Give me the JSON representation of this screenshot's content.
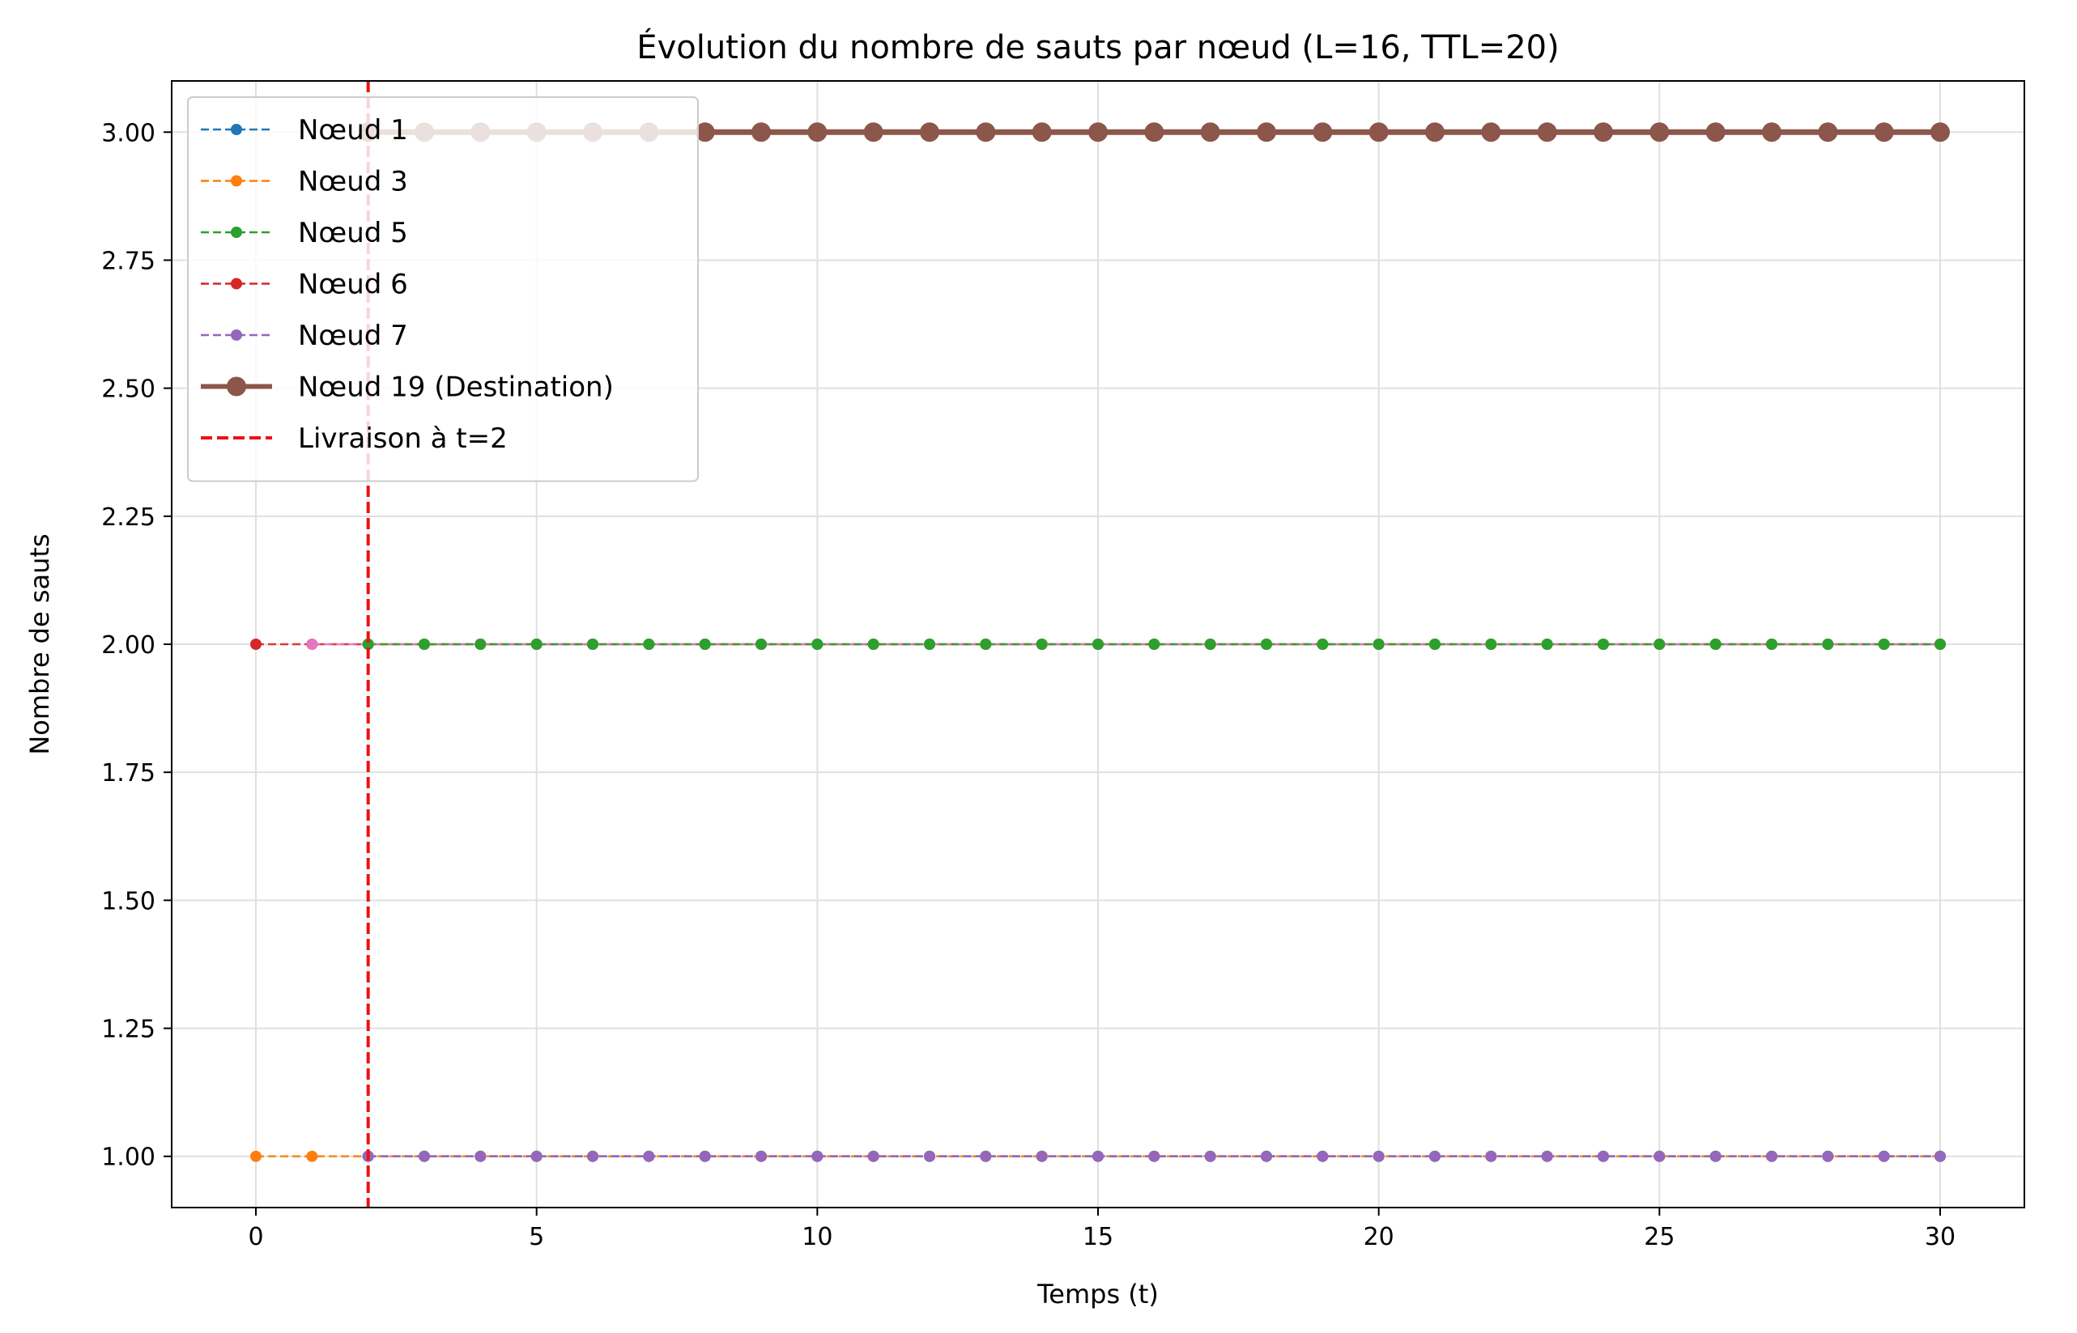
{
  "chart_data": {
    "type": "line",
    "title": "Évolution du nombre de sauts par nœud (L=16, TTL=20)",
    "xlabel": "Temps (t)",
    "ylabel": "Nombre de sauts",
    "xlim": [
      -1.5,
      31.5
    ],
    "ylim": [
      0.9,
      3.1
    ],
    "xticks": [
      0,
      5,
      10,
      15,
      20,
      25,
      30
    ],
    "yticks": [
      1.0,
      1.25,
      1.5,
      1.75,
      2.0,
      2.25,
      2.5,
      2.75,
      3.0
    ],
    "ytick_labels": [
      "1.00",
      "1.25",
      "1.50",
      "1.75",
      "2.00",
      "2.25",
      "2.50",
      "2.75",
      "3.00"
    ],
    "grid": true,
    "legend_position": "top-left",
    "series": [
      {
        "name": "Nœud 1",
        "color": "#1f77b4",
        "style": "dashed",
        "marker": "small",
        "x": [
          2,
          3,
          4,
          5,
          6,
          7,
          8,
          9,
          10,
          11,
          12,
          13,
          14,
          15,
          16,
          17,
          18,
          19,
          20,
          21,
          22,
          23,
          24,
          25,
          26,
          27,
          28,
          29,
          30
        ],
        "y": [
          1,
          1,
          1,
          1,
          1,
          1,
          1,
          1,
          1,
          1,
          1,
          1,
          1,
          1,
          1,
          1,
          1,
          1,
          1,
          1,
          1,
          1,
          1,
          1,
          1,
          1,
          1,
          1,
          1
        ]
      },
      {
        "name": "Nœud 3",
        "color": "#ff7f0e",
        "style": "dashed",
        "marker": "small",
        "x": [
          0,
          1,
          2,
          3,
          4,
          5,
          6,
          7,
          8,
          9,
          10,
          11,
          12,
          13,
          14,
          15,
          16,
          17,
          18,
          19,
          20,
          21,
          22,
          23,
          24,
          25,
          26,
          27,
          28,
          29,
          30
        ],
        "y": [
          1,
          1,
          1,
          1,
          1,
          1,
          1,
          1,
          1,
          1,
          1,
          1,
          1,
          1,
          1,
          1,
          1,
          1,
          1,
          1,
          1,
          1,
          1,
          1,
          1,
          1,
          1,
          1,
          1,
          1,
          1
        ]
      },
      {
        "name": "Nœud 6",
        "color": "#d62728",
        "style": "dashed",
        "marker": "small",
        "x": [
          0,
          1,
          2,
          3,
          4,
          5,
          6,
          7,
          8,
          9,
          10,
          11,
          12,
          13,
          14,
          15,
          16,
          17,
          18,
          19,
          20,
          21,
          22,
          23,
          24,
          25,
          26,
          27,
          28,
          29,
          30
        ],
        "y": [
          2,
          2,
          2,
          2,
          2,
          2,
          2,
          2,
          2,
          2,
          2,
          2,
          2,
          2,
          2,
          2,
          2,
          2,
          2,
          2,
          2,
          2,
          2,
          2,
          2,
          2,
          2,
          2,
          2,
          2,
          2
        ]
      },
      {
        "name": "",
        "color": "#e377c2",
        "style": "dashed",
        "marker": "small",
        "x": [
          1,
          2,
          3,
          4,
          5,
          6,
          7,
          8,
          9,
          10,
          11,
          12,
          13,
          14,
          15,
          16,
          17,
          18,
          19,
          20,
          21,
          22,
          23,
          24,
          25,
          26,
          27,
          28,
          29,
          30
        ],
        "y": [
          2,
          2,
          2,
          2,
          2,
          2,
          2,
          2,
          2,
          2,
          2,
          2,
          2,
          2,
          2,
          2,
          2,
          2,
          2,
          2,
          2,
          2,
          2,
          2,
          2,
          2,
          2,
          2,
          2,
          2
        ]
      },
      {
        "name": "Nœud 5",
        "color": "#2ca02c",
        "style": "dashed",
        "marker": "small",
        "x": [
          2,
          3,
          4,
          5,
          6,
          7,
          8,
          9,
          10,
          11,
          12,
          13,
          14,
          15,
          16,
          17,
          18,
          19,
          20,
          21,
          22,
          23,
          24,
          25,
          26,
          27,
          28,
          29,
          30
        ],
        "y": [
          2,
          2,
          2,
          2,
          2,
          2,
          2,
          2,
          2,
          2,
          2,
          2,
          2,
          2,
          2,
          2,
          2,
          2,
          2,
          2,
          2,
          2,
          2,
          2,
          2,
          2,
          2,
          2,
          2
        ]
      },
      {
        "name": "Nœud 7",
        "color": "#9467bd",
        "style": "dashed",
        "marker": "small",
        "x": [
          2,
          3,
          4,
          5,
          6,
          7,
          8,
          9,
          10,
          11,
          12,
          13,
          14,
          15,
          16,
          17,
          18,
          19,
          20,
          21,
          22,
          23,
          24,
          25,
          26,
          27,
          28,
          29,
          30
        ],
        "y": [
          1,
          1,
          1,
          1,
          1,
          1,
          1,
          1,
          1,
          1,
          1,
          1,
          1,
          1,
          1,
          1,
          1,
          1,
          1,
          1,
          1,
          1,
          1,
          1,
          1,
          1,
          1,
          1,
          1
        ]
      },
      {
        "name": "Nœud 19 (Destination)",
        "color": "#8c564b",
        "style": "solid",
        "marker": "large",
        "x": [
          2,
          3,
          4,
          5,
          6,
          7,
          8,
          9,
          10,
          11,
          12,
          13,
          14,
          15,
          16,
          17,
          18,
          19,
          20,
          21,
          22,
          23,
          24,
          25,
          26,
          27,
          28,
          29,
          30
        ],
        "y": [
          3,
          3,
          3,
          3,
          3,
          3,
          3,
          3,
          3,
          3,
          3,
          3,
          3,
          3,
          3,
          3,
          3,
          3,
          3,
          3,
          3,
          3,
          3,
          3,
          3,
          3,
          3,
          3,
          3
        ]
      }
    ],
    "vline": {
      "x": 2,
      "color": "#ee1111",
      "label": "Livraison à t=2"
    },
    "legend": [
      {
        "label": "Nœud 1",
        "color": "#1f77b4",
        "style": "dashed",
        "marker": "small"
      },
      {
        "label": "Nœud 3",
        "color": "#ff7f0e",
        "style": "dashed",
        "marker": "small"
      },
      {
        "label": "Nœud 5",
        "color": "#2ca02c",
        "style": "dashed",
        "marker": "small"
      },
      {
        "label": "Nœud 6",
        "color": "#d62728",
        "style": "dashed",
        "marker": "small"
      },
      {
        "label": "Nœud 7",
        "color": "#9467bd",
        "style": "dashed",
        "marker": "small"
      },
      {
        "label": "Nœud 19 (Destination)",
        "color": "#8c564b",
        "style": "solid",
        "marker": "large"
      },
      {
        "label": "Livraison à t=2",
        "color": "#ee1111",
        "style": "dashed-thick",
        "marker": "none"
      }
    ]
  }
}
